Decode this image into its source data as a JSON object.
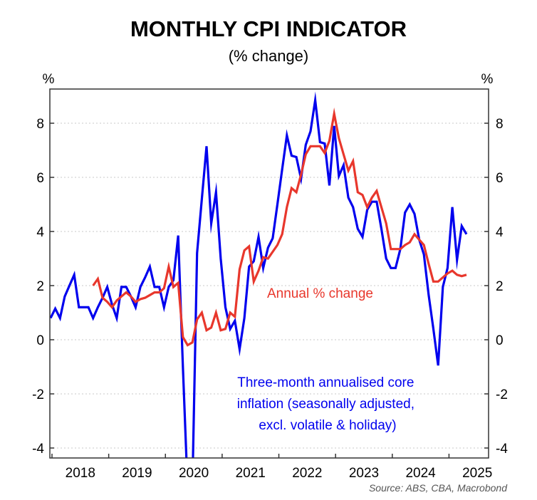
{
  "chart_data": {
    "type": "line",
    "title": "MONTHLY CPI INDICATOR",
    "subtitle": "(% change)",
    "ylabel_left": "%",
    "ylabel_right": "%",
    "xlabel": "",
    "source": "Source: ABS, CBA, Macrobond",
    "ylim": [
      -4.4,
      9.2
    ],
    "yticks": [
      -4,
      -2,
      0,
      2,
      4,
      6,
      8
    ],
    "ytick_labels": [
      "-4",
      "-2",
      "0",
      "2",
      "4",
      "6",
      "8"
    ],
    "x_start": "2018-01",
    "x_end": "2025-07",
    "xtick_labels": [
      "2018",
      "2019",
      "2020",
      "2021",
      "2022",
      "2023",
      "2024",
      "2025"
    ],
    "grid": "horizontal dotted",
    "series": [
      {
        "name": "Three-month annualised core inflation (seasonally adjusted, excl. volatile & holiday)",
        "color": "#0000ee",
        "start_month_index": 0,
        "values": [
          0.8,
          1.15,
          0.8,
          1.6,
          2.0,
          2.4,
          1.2,
          1.2,
          1.2,
          0.8,
          1.2,
          1.55,
          1.95,
          1.3,
          0.8,
          1.95,
          1.95,
          1.6,
          1.2,
          1.95,
          2.3,
          2.7,
          1.95,
          1.95,
          1.2,
          1.95,
          2.2,
          3.85,
          -1.0,
          -5.5,
          -5.5,
          3.2,
          5.2,
          7.15,
          4.3,
          5.45,
          3.0,
          1.2,
          0.4,
          0.7,
          -0.35,
          0.8,
          2.7,
          2.9,
          3.8,
          2.65,
          3.4,
          3.75,
          5.0,
          6.3,
          7.55,
          6.8,
          6.75,
          5.95,
          7.2,
          7.7,
          8.85,
          7.3,
          7.25,
          5.7,
          7.9,
          6.05,
          6.45,
          5.25,
          4.9,
          4.1,
          3.8,
          4.8,
          5.1,
          5.1,
          4.1,
          3.0,
          2.65,
          2.65,
          3.35,
          4.7,
          5.0,
          4.65,
          3.7,
          3.15,
          1.65,
          0.4,
          -0.95,
          1.95,
          2.65,
          4.9,
          2.95,
          4.2,
          3.9
        ]
      },
      {
        "name": "Annual % change",
        "color": "#e8372c",
        "start_month_index": 9,
        "values": [
          2.0,
          2.25,
          1.55,
          1.4,
          1.2,
          1.45,
          1.6,
          1.75,
          1.6,
          1.4,
          1.5,
          1.55,
          1.65,
          1.75,
          1.75,
          1.9,
          2.7,
          1.95,
          2.1,
          0.1,
          -0.2,
          -0.1,
          0.75,
          1.0,
          0.35,
          0.45,
          1.0,
          0.35,
          0.4,
          1.0,
          0.85,
          2.6,
          3.3,
          3.45,
          2.15,
          2.55,
          3.05,
          3.0,
          3.25,
          3.5,
          3.9,
          4.9,
          5.6,
          5.45,
          6.1,
          6.85,
          7.15,
          7.15,
          7.15,
          6.9,
          7.35,
          8.35,
          7.45,
          6.85,
          6.25,
          6.6,
          5.45,
          5.35,
          4.9,
          5.25,
          5.5,
          4.9,
          4.3,
          3.35,
          3.35,
          3.35,
          3.5,
          3.6,
          3.9,
          3.7,
          3.5,
          2.8,
          2.15,
          2.15,
          2.3,
          2.45,
          2.55,
          2.4,
          2.35,
          2.4
        ]
      }
    ],
    "annotations": [
      {
        "id": "annual",
        "lines": [
          "Annual % change"
        ],
        "color": "#e8372c"
      },
      {
        "id": "core",
        "lines": [
          "Three-month annualised core",
          "inflation (seasonally adjusted,",
          "excl. volatile & holiday)"
        ],
        "color": "#0000ee"
      }
    ]
  }
}
